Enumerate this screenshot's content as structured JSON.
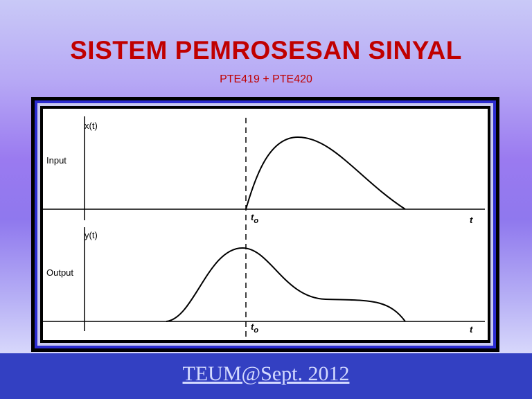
{
  "header": {
    "title": "SISTEM PEMROSESAN SINYAL",
    "subtitle": "PTE419 + PTE420"
  },
  "diagram": {
    "input": {
      "axis_label": "x(t)",
      "label": "Input",
      "t0": {
        "base": "t",
        "sub": "o"
      },
      "t_label": "t"
    },
    "output": {
      "axis_label": "y(t)",
      "label": "Output",
      "t0": {
        "base": "t",
        "sub": "o"
      },
      "t_label": "t"
    }
  },
  "footer": {
    "text": "TEUM@Sept. 2012"
  }
}
